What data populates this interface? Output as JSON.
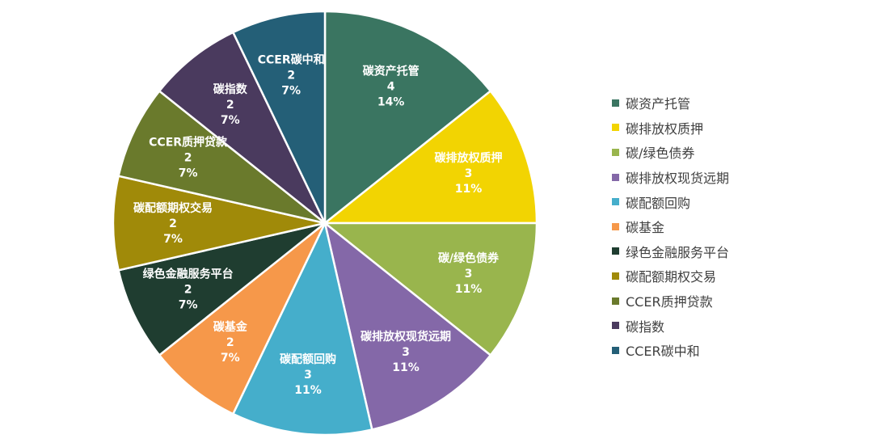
{
  "chart_data": {
    "type": "pie",
    "title": "",
    "legend_position": "right",
    "slices": [
      {
        "label": "碳资产托管",
        "value": 4,
        "percent": "14%",
        "color": "#3A7561",
        "label_color": "#ffffff"
      },
      {
        "label": "碳排放权质押",
        "value": 3,
        "percent": "11%",
        "color": "#F2D402",
        "label_color": "#ffffff"
      },
      {
        "label": "碳/绿色债券",
        "value": 3,
        "percent": "11%",
        "color": "#99B54D",
        "label_color": "#ffffff"
      },
      {
        "label": "碳排放权现货远期",
        "value": 3,
        "percent": "11%",
        "color": "#8468A8",
        "label_color": "#ffffff"
      },
      {
        "label": "碳配额回购",
        "value": 3,
        "percent": "11%",
        "color": "#45AECB",
        "label_color": "#ffffff"
      },
      {
        "label": "碳基金",
        "value": 2,
        "percent": "7%",
        "color": "#F6984A",
        "label_color": "#ffffff"
      },
      {
        "label": "绿色金融服务平台",
        "value": 2,
        "percent": "7%",
        "color": "#1F3D30",
        "label_color": "#ffffff"
      },
      {
        "label": "碳配额期权交易",
        "value": 2,
        "percent": "7%",
        "color": "#A08A09",
        "label_color": "#ffffff"
      },
      {
        "label": "CCER质押贷款",
        "value": 2,
        "percent": "7%",
        "color": "#6A7A2C",
        "label_color": "#ffffff"
      },
      {
        "label": "碳指数",
        "value": 2,
        "percent": "7%",
        "color": "#4A3A5E",
        "label_color": "#ffffff"
      },
      {
        "label": "CCER碳中和",
        "value": 2,
        "percent": "7%",
        "color": "#245F77",
        "label_color": "#ffffff"
      }
    ]
  }
}
